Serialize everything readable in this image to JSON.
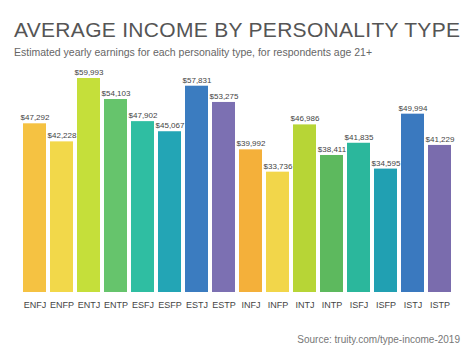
{
  "chart_data": {
    "type": "bar",
    "title": "AVERAGE INCOME BY PERSONALITY TYPE",
    "subtitle": "Estimated yearly earnings for each personality type, for respondents age 21+",
    "source": "Source: truity.com/type-income-2019",
    "categories": [
      "ENFJ",
      "ENFP",
      "ENTJ",
      "ENTP",
      "ESFJ",
      "ESFP",
      "ESTJ",
      "ESTP",
      "INFJ",
      "INFP",
      "INTJ",
      "INTP",
      "ISFJ",
      "ISFP",
      "ISTJ",
      "ISTP"
    ],
    "values": [
      47292,
      42228,
      59993,
      54103,
      47902,
      45067,
      57831,
      53275,
      39992,
      33736,
      46986,
      38411,
      41835,
      34595,
      49994,
      41229
    ],
    "value_labels": [
      "$47,292",
      "$42,228",
      "$59,993",
      "$54,103",
      "$47,902",
      "$45,067",
      "$57,831",
      "$53,275",
      "$39,992",
      "$33,736",
      "$46,986",
      "$38,411",
      "$41,835",
      "$34,595",
      "$49,994",
      "$41,229"
    ],
    "colors": [
      "#f5c242",
      "#f2d84a",
      "#c5df3a",
      "#66c46c",
      "#2fbea2",
      "#23a5b5",
      "#3b7cc0",
      "#7c70b2",
      "#f4b03a",
      "#f2d64a",
      "#b7d536",
      "#5db95e",
      "#2bb79c",
      "#21a0b2",
      "#3a79bf",
      "#7a6cad"
    ],
    "data_labels": true,
    "tick_labels": "x",
    "grid": false
  }
}
